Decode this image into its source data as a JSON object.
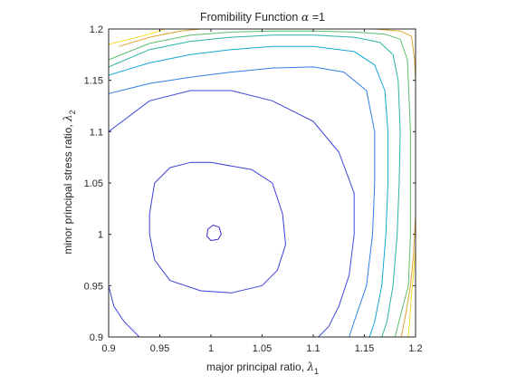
{
  "chart_data": {
    "type": "contour",
    "title": "Fromibility Function",
    "title_parameter": {
      "symbol": "α",
      "suffix": " =1"
    },
    "xlabel": "major principal ratio,",
    "xlabel_symbol": {
      "symbol": "λ",
      "subscript": "1"
    },
    "ylabel": "minor principal stress ratio,",
    "ylabel_symbol": {
      "symbol": "λ",
      "subscript": "2"
    },
    "xlim": [
      0.9,
      1.2
    ],
    "ylim": [
      0.9,
      1.2
    ],
    "xticks": [
      0.9,
      0.95,
      1,
      1.05,
      1.1,
      1.15,
      1.2
    ],
    "yticks": [
      0.9,
      0.95,
      1,
      1.05,
      1.1,
      1.15,
      1.2
    ],
    "xtick_labels": [
      "0.9",
      "0.95",
      "1",
      "1.05",
      "1.1",
      "1.15",
      "1.2"
    ],
    "ytick_labels": [
      "0.9",
      "0.95",
      "1",
      "1.05",
      "1.1",
      "1.15",
      "1.2"
    ],
    "grid": false,
    "box": true,
    "colormap": "parula",
    "contours": [
      {
        "color": "#3b2fc8",
        "paths": [
          [
            [
              0.997,
              1.005
            ],
            [
              1.002,
              1.009
            ],
            [
              1.008,
              1.007
            ],
            [
              1.01,
              1.0
            ],
            [
              1.007,
              0.995
            ],
            [
              1.0,
              0.994
            ],
            [
              0.996,
              0.998
            ],
            [
              0.997,
              1.005
            ]
          ]
        ]
      },
      {
        "color": "#3b3fd4",
        "paths": [
          [
            [
              0.94,
              1.02
            ],
            [
              0.945,
              1.05
            ],
            [
              0.96,
              1.065
            ],
            [
              0.98,
              1.07
            ],
            [
              1.0,
              1.07
            ],
            [
              1.04,
              1.063
            ],
            [
              1.06,
              1.05
            ],
            [
              1.07,
              1.02
            ],
            [
              1.073,
              0.99
            ],
            [
              1.065,
              0.965
            ],
            [
              1.05,
              0.95
            ],
            [
              1.02,
              0.943
            ],
            [
              0.99,
              0.945
            ],
            [
              0.96,
              0.955
            ],
            [
              0.945,
              0.975
            ],
            [
              0.94,
              1.0
            ],
            [
              0.94,
              1.02
            ]
          ]
        ]
      },
      {
        "color": "#3d48d9",
        "paths": [
          [
            [
              0.9,
              0.95
            ],
            [
              0.905,
              0.93
            ],
            [
              0.915,
              0.915
            ],
            [
              0.925,
              0.905
            ],
            [
              0.93,
              0.9
            ]
          ],
          [
            [
              0.9,
              1.1
            ],
            [
              0.94,
              1.13
            ],
            [
              0.98,
              1.14
            ],
            [
              1.02,
              1.14
            ],
            [
              1.06,
              1.13
            ],
            [
              1.1,
              1.11
            ],
            [
              1.125,
              1.08
            ],
            [
              1.14,
              1.04
            ],
            [
              1.14,
              1.0
            ],
            [
              1.135,
              0.96
            ],
            [
              1.125,
              0.93
            ],
            [
              1.115,
              0.91
            ],
            [
              1.105,
              0.9
            ]
          ]
        ]
      },
      {
        "color": "#2f7fe6",
        "paths": [
          [
            [
              0.9,
              1.137
            ],
            [
              0.94,
              1.147
            ],
            [
              0.98,
              1.153
            ],
            [
              1.02,
              1.158
            ],
            [
              1.06,
              1.162
            ],
            [
              1.1,
              1.163
            ],
            [
              1.13,
              1.158
            ],
            [
              1.152,
              1.14
            ],
            [
              1.16,
              1.1
            ],
            [
              1.16,
              1.05
            ],
            [
              1.158,
              1.0
            ],
            [
              1.152,
              0.95
            ],
            [
              1.14,
              0.915
            ],
            [
              1.135,
              0.9
            ]
          ]
        ]
      },
      {
        "color": "#14a6d6",
        "paths": [
          [
            [
              0.9,
              1.155
            ],
            [
              0.94,
              1.167
            ],
            [
              0.98,
              1.175
            ],
            [
              1.02,
              1.18
            ],
            [
              1.06,
              1.183
            ],
            [
              1.1,
              1.183
            ],
            [
              1.14,
              1.178
            ],
            [
              1.16,
              1.165
            ],
            [
              1.17,
              1.14
            ],
            [
              1.173,
              1.1
            ],
            [
              1.173,
              1.05
            ],
            [
              1.171,
              1.0
            ],
            [
              1.167,
              0.95
            ],
            [
              1.16,
              0.915
            ],
            [
              1.155,
              0.9
            ]
          ]
        ]
      },
      {
        "color": "#2bb5a0",
        "paths": [
          [
            [
              0.9,
              1.163
            ],
            [
              0.94,
              1.18
            ],
            [
              0.98,
              1.188
            ],
            [
              1.02,
              1.192
            ],
            [
              1.06,
              1.194
            ],
            [
              1.1,
              1.194
            ],
            [
              1.14,
              1.192
            ],
            [
              1.165,
              1.187
            ],
            [
              1.178,
              1.175
            ],
            [
              1.183,
              1.15
            ],
            [
              1.185,
              1.1
            ],
            [
              1.184,
              1.05
            ],
            [
              1.182,
              1.0
            ],
            [
              1.178,
              0.95
            ],
            [
              1.172,
              0.915
            ],
            [
              1.167,
              0.9
            ]
          ]
        ]
      },
      {
        "color": "#5cbf6c",
        "paths": [
          [
            [
              0.9,
              1.17
            ],
            [
              0.94,
              1.186
            ],
            [
              0.98,
              1.194
            ],
            [
              1.02,
              1.197
            ],
            [
              1.06,
              1.198
            ],
            [
              1.1,
              1.198
            ],
            [
              1.14,
              1.197
            ],
            [
              1.17,
              1.195
            ],
            [
              1.185,
              1.19
            ],
            [
              1.192,
              1.17
            ],
            [
              1.195,
              1.1
            ],
            [
              1.195,
              1.0
            ],
            [
              1.193,
              0.95
            ],
            [
              1.185,
              0.92
            ],
            [
              1.18,
              0.9
            ]
          ]
        ]
      },
      {
        "color": "#e0a531",
        "paths": [
          [
            [
              0.91,
              1.183
            ],
            [
              0.94,
              1.192
            ],
            [
              0.97,
              1.198
            ],
            [
              0.99,
              1.2
            ]
          ],
          [
            [
              1.16,
              1.2
            ],
            [
              1.185,
              1.198
            ],
            [
              1.196,
              1.193
            ],
            [
              1.199,
              1.17
            ],
            [
              1.2,
              1.15
            ]
          ],
          [
            [
              1.2,
              1.02
            ],
            [
              1.198,
              0.98
            ],
            [
              1.195,
              0.95
            ],
            [
              1.19,
              0.92
            ],
            [
              1.186,
              0.9
            ]
          ]
        ]
      },
      {
        "color": "#f2dc1e",
        "paths": [
          [
            [
              0.9,
              1.185
            ],
            [
              0.94,
              1.195
            ],
            [
              0.955,
              1.2
            ]
          ],
          [
            [
              1.2,
              0.985
            ],
            [
              1.196,
              0.94
            ],
            [
              1.193,
              0.9
            ]
          ]
        ]
      }
    ]
  }
}
